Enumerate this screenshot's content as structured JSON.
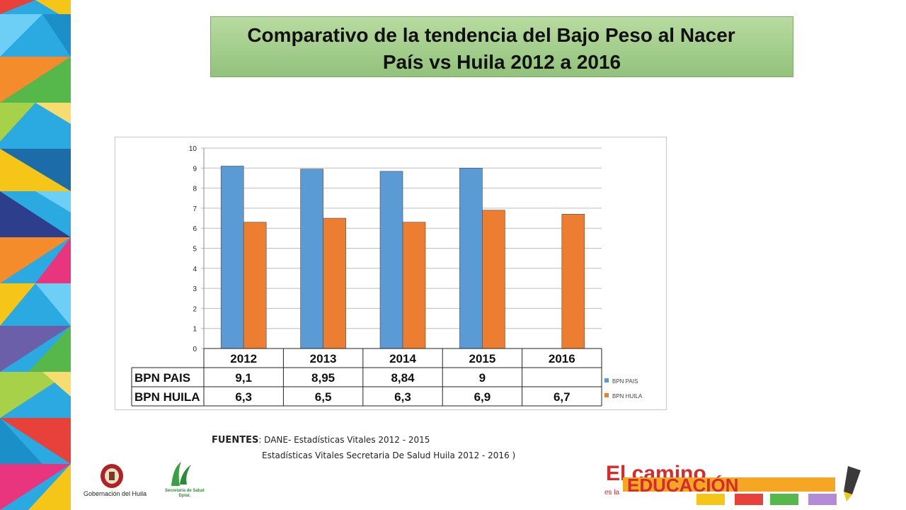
{
  "title": {
    "line1": "Comparativo de la tendencia del Bajo Peso al Nacer",
    "line2": "País vs Huila 2012  a 2016"
  },
  "chart_data": {
    "type": "bar",
    "categories": [
      "2012",
      "2013",
      "2014",
      "2015",
      "2016"
    ],
    "series": [
      {
        "name": "BPN PAIS",
        "values": [
          9.1,
          8.95,
          8.84,
          9,
          null
        ],
        "color": "#5b9bd5"
      },
      {
        "name": "BPN HUILA",
        "values": [
          6.3,
          6.5,
          6.3,
          6.9,
          6.7
        ],
        "color": "#ed7d31"
      }
    ],
    "ylim": [
      0,
      10
    ],
    "yticks": [
      "0",
      "1",
      "2",
      "3",
      "4",
      "5",
      "6",
      "7",
      "8",
      "9",
      "10"
    ],
    "grid": true,
    "legend": "right",
    "data_table": {
      "rows": [
        {
          "label": "BPN PAIS",
          "cells": [
            "9,1",
            "8,95",
            "8,84",
            "9",
            ""
          ]
        },
        {
          "label": "BPN HUILA",
          "cells": [
            "6,3",
            "6,5",
            "6,3",
            "6,9",
            "6,7"
          ]
        }
      ]
    },
    "legend_entries": [
      "BPN PAIS",
      "BPN HUILA"
    ]
  },
  "sources": {
    "label": "FUENTES",
    "line1": ": DANE- Estadísticas Vitales 2012 - 2015",
    "line2": "Estadísticas Vitales Secretaria De Salud Huila 2012 - 2016 )"
  },
  "logos": {
    "gobernacion": "Gobernación del Huila",
    "secretaria_line1": "Secretaria de Salud",
    "secretaria_line2": "Dptal.",
    "camino_text": "El camino",
    "camino_small": "es la",
    "educacion_text": "EDUCACIÓN"
  }
}
